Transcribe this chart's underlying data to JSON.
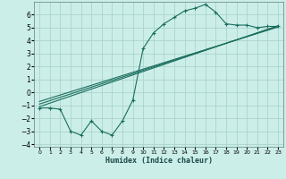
{
  "xlabel": "Humidex (Indice chaleur)",
  "bg_color": "#cceee8",
  "grid_color": "#aad4cc",
  "line_color": "#1a6e5e",
  "xlim": [
    -0.5,
    23.5
  ],
  "ylim": [
    -4.2,
    7.0
  ],
  "xticks": [
    0,
    1,
    2,
    3,
    4,
    5,
    6,
    7,
    8,
    9,
    10,
    11,
    12,
    13,
    14,
    15,
    16,
    17,
    18,
    19,
    20,
    21,
    22,
    23
  ],
  "yticks": [
    -4,
    -3,
    -2,
    -1,
    0,
    1,
    2,
    3,
    4,
    5,
    6
  ],
  "jagged_x": [
    0,
    1,
    2,
    3,
    4,
    5,
    6,
    7,
    8,
    9,
    10,
    11,
    12,
    13,
    14,
    15,
    16,
    17,
    18,
    19,
    20,
    21,
    22,
    23
  ],
  "jagged_y": [
    -1.2,
    -1.2,
    -1.3,
    -3.0,
    -3.3,
    -2.2,
    -3.0,
    -3.3,
    -2.2,
    -0.6,
    3.4,
    4.6,
    5.3,
    5.8,
    6.3,
    6.5,
    6.8,
    6.2,
    5.3,
    5.2,
    5.2,
    5.0,
    5.1,
    5.1
  ],
  "line1_x": [
    0,
    23
  ],
  "line1_y": [
    -1.1,
    5.15
  ],
  "line2_x": [
    0,
    23
  ],
  "line2_y": [
    -0.9,
    5.1
  ],
  "line3_x": [
    0,
    23
  ],
  "line3_y": [
    -0.7,
    5.05
  ]
}
